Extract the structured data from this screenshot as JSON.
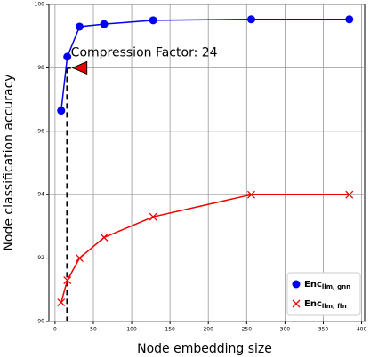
{
  "chart_data": {
    "type": "line",
    "x_label": "Node embedding size",
    "y_label": "Node classification accuracy",
    "xlim": [
      -8,
      404
    ],
    "ylim": [
      90,
      100
    ],
    "xticks": [
      0,
      50,
      100,
      150,
      200,
      250,
      300,
      350,
      400
    ],
    "yticks": [
      90,
      92,
      94,
      96,
      98,
      100
    ],
    "grid": true,
    "legend": "lower right",
    "x": [
      8,
      16,
      32,
      64,
      128,
      256,
      384
    ],
    "series": [
      {
        "name": "Enc",
        "name_sub": "llm, gnn",
        "color": "#0000ee",
        "marker": "o",
        "values": [
          96.65,
          98.35,
          99.3,
          99.38,
          99.5,
          99.53,
          99.53
        ]
      },
      {
        "name": "Enc",
        "name_sub": "llm, ffn",
        "color": "#ee0000",
        "marker": "x",
        "values": [
          90.6,
          91.3,
          92.0,
          92.65,
          93.3,
          94.0,
          94.0
        ]
      }
    ],
    "annotation": {
      "text": "Compression Factor: 24",
      "x": 16,
      "y": 98,
      "color": "#ee0000"
    }
  }
}
